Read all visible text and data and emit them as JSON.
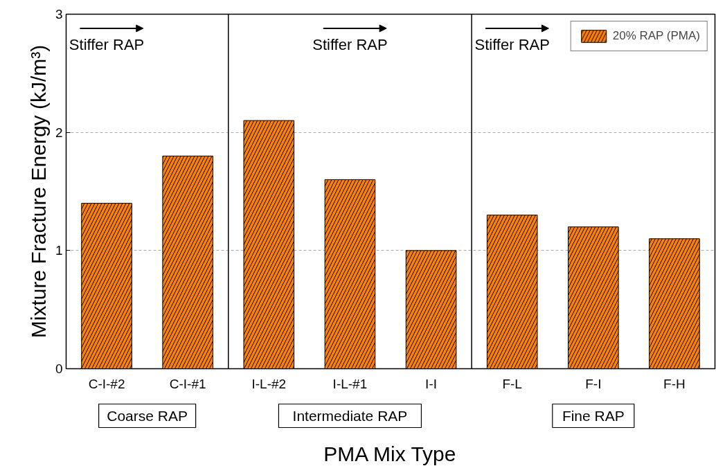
{
  "chart_data": {
    "type": "bar",
    "xlabel": "PMA Mix Type",
    "ylabel": "Mixture Fracture Energy (kJ/m³)",
    "categories": [
      "C-I-#2",
      "C-I-#1",
      "I-L-#2",
      "I-L-#1",
      "I-I",
      "F-L",
      "F-I",
      "F-H"
    ],
    "series": [
      {
        "name": "20% RAP (PMA)",
        "color": "#ff8000",
        "values": [
          1.4,
          1.8,
          2.1,
          1.6,
          1.0,
          1.3,
          1.2,
          1.1
        ]
      }
    ],
    "ylim": [
      0,
      3
    ],
    "yticks": [
      0,
      1,
      2,
      3
    ],
    "grid": "y",
    "legend": "top right",
    "annotations": [
      "Stiffer RAP",
      "Stiffer RAP",
      "Stiffer RAP",
      "Coarse RAP",
      "Intermediate RAP",
      "Fine RAP"
    ]
  }
}
